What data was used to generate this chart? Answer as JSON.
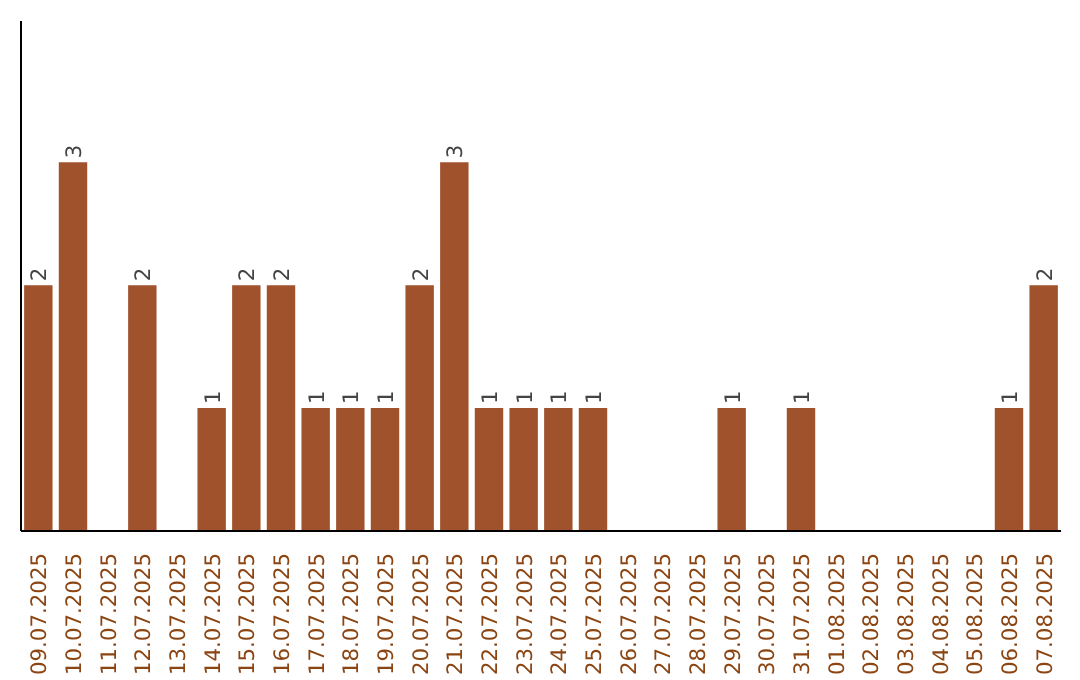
{
  "chart_data": {
    "type": "bar",
    "categories": [
      "09.07.2025",
      "10.07.2025",
      "11.07.2025",
      "12.07.2025",
      "13.07.2025",
      "14.07.2025",
      "15.07.2025",
      "16.07.2025",
      "17.07.2025",
      "18.07.2025",
      "19.07.2025",
      "20.07.2025",
      "21.07.2025",
      "22.07.2025",
      "23.07.2025",
      "24.07.2025",
      "25.07.2025",
      "26.07.2025",
      "27.07.2025",
      "28.07.2025",
      "29.07.2025",
      "30.07.2025",
      "31.07.2025",
      "01.08.2025",
      "02.08.2025",
      "03.08.2025",
      "04.08.2025",
      "05.08.2025",
      "06.08.2025",
      "07.08.2025"
    ],
    "values": [
      2,
      3,
      0,
      2,
      0,
      1,
      2,
      2,
      1,
      1,
      1,
      2,
      3,
      1,
      1,
      1,
      1,
      0,
      0,
      0,
      1,
      0,
      1,
      0,
      0,
      0,
      0,
      0,
      1,
      2
    ],
    "value_labels": [
      "2",
      "3",
      null,
      "2",
      null,
      "1",
      "2",
      "2",
      "1",
      "1",
      "1",
      "2",
      "3",
      "1",
      "1",
      "1",
      "1",
      null,
      null,
      null,
      "1",
      null,
      "1",
      null,
      null,
      null,
      null,
      null,
      "1",
      "2"
    ],
    "color": "#a0522d",
    "ylim": [
      0,
      4.15
    ],
    "tick_labels": "x",
    "grid": false
  }
}
